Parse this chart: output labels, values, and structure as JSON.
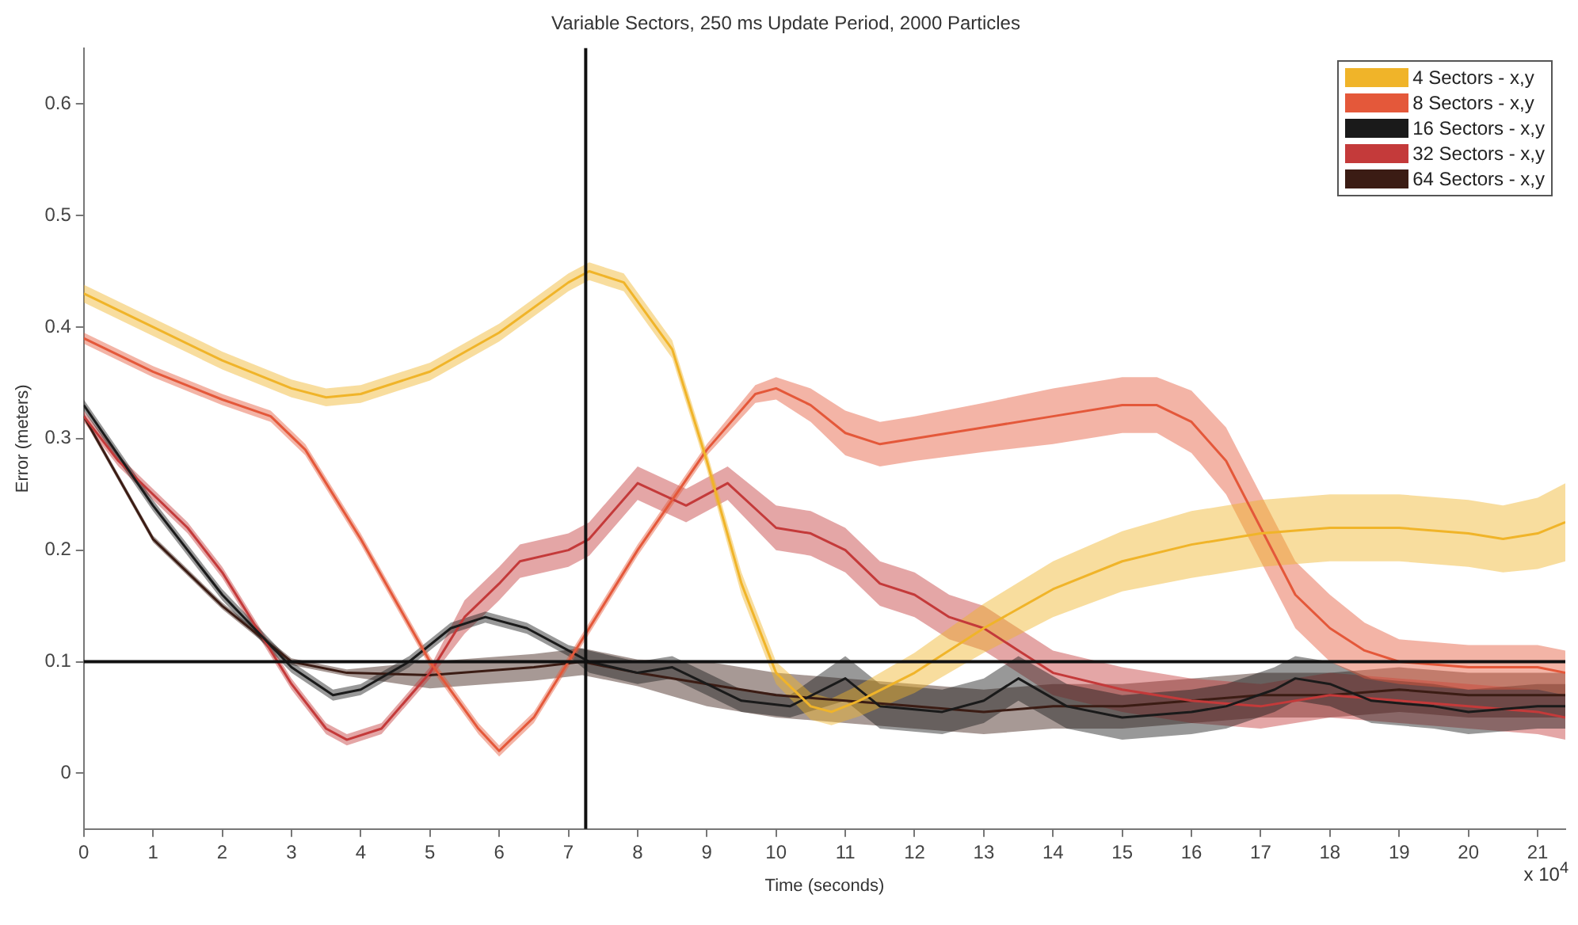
{
  "chart_data": {
    "type": "line",
    "title": "Variable Sectors, 250 ms Update Period, 2000 Particles",
    "xlabel": "Time (seconds)",
    "ylabel": "Error (meters)",
    "annotations": [
      "x 10$^{4}$"
    ],
    "xlim": [
      0,
      21.4
    ],
    "xticks": [
      0,
      1,
      2,
      3,
      4,
      5,
      6,
      7,
      8,
      9,
      10,
      11,
      12,
      13,
      14,
      15,
      16,
      17,
      18,
      19,
      20,
      21
    ],
    "ylim": [
      -0.05,
      0.65
    ],
    "yticks": [
      0,
      0.1,
      0.2,
      0.3,
      0.4,
      0.5,
      0.6
    ],
    "grid": false,
    "legend": "top right",
    "marker": "none",
    "line_style": "solid",
    "ref_lines": [
      {
        "axis": "y",
        "value": 0.1,
        "color": "#111111"
      },
      {
        "axis": "x",
        "value": 7.25,
        "color": "#111111"
      }
    ],
    "series": [
      {
        "name": "4 Sectors - x,y",
        "color": "#f0b429",
        "x": [
          0,
          1,
          2,
          3,
          3.5,
          4,
          5,
          6,
          7,
          7.3,
          7.8,
          8.5,
          9,
          9.5,
          10,
          10.5,
          10.8,
          11.2,
          12,
          13,
          14,
          15,
          16,
          17,
          18,
          19,
          20,
          20.5,
          21,
          21.4
        ],
        "values": [
          0.43,
          0.4,
          0.37,
          0.345,
          0.337,
          0.34,
          0.36,
          0.395,
          0.44,
          0.45,
          0.44,
          0.38,
          0.28,
          0.17,
          0.09,
          0.06,
          0.055,
          0.065,
          0.09,
          0.13,
          0.165,
          0.19,
          0.205,
          0.215,
          0.22,
          0.22,
          0.215,
          0.21,
          0.215,
          0.225
        ],
        "lower": [
          0.422,
          0.392,
          0.362,
          0.337,
          0.329,
          0.332,
          0.352,
          0.387,
          0.432,
          0.442,
          0.432,
          0.372,
          0.272,
          0.16,
          0.08,
          0.048,
          0.043,
          0.051,
          0.072,
          0.108,
          0.14,
          0.163,
          0.175,
          0.185,
          0.19,
          0.19,
          0.185,
          0.18,
          0.183,
          0.19
        ],
        "upper": [
          0.438,
          0.408,
          0.378,
          0.353,
          0.345,
          0.348,
          0.368,
          0.403,
          0.448,
          0.458,
          0.448,
          0.388,
          0.288,
          0.18,
          0.1,
          0.072,
          0.067,
          0.079,
          0.108,
          0.152,
          0.19,
          0.217,
          0.235,
          0.245,
          0.25,
          0.25,
          0.245,
          0.24,
          0.247,
          0.26
        ]
      },
      {
        "name": "8 Sectors - x,y",
        "color": "#e4583a",
        "x": [
          0,
          1,
          2,
          2.7,
          3.2,
          4,
          5,
          5.7,
          6,
          6.5,
          7,
          8,
          9,
          9.7,
          10,
          10.5,
          11,
          11.5,
          12,
          13,
          14,
          15,
          15.5,
          16,
          16.5,
          17,
          17.5,
          18,
          18.5,
          19,
          20,
          21,
          21.4
        ],
        "values": [
          0.39,
          0.36,
          0.335,
          0.32,
          0.29,
          0.21,
          0.1,
          0.04,
          0.02,
          0.05,
          0.1,
          0.2,
          0.29,
          0.34,
          0.345,
          0.33,
          0.305,
          0.295,
          0.3,
          0.31,
          0.32,
          0.33,
          0.33,
          0.315,
          0.28,
          0.22,
          0.16,
          0.13,
          0.11,
          0.1,
          0.095,
          0.095,
          0.09
        ],
        "lower": [
          0.385,
          0.355,
          0.33,
          0.315,
          0.285,
          0.205,
          0.095,
          0.035,
          0.015,
          0.045,
          0.095,
          0.195,
          0.285,
          0.332,
          0.335,
          0.315,
          0.285,
          0.275,
          0.28,
          0.288,
          0.295,
          0.305,
          0.305,
          0.287,
          0.25,
          0.19,
          0.13,
          0.1,
          0.085,
          0.08,
          0.075,
          0.075,
          0.07
        ],
        "upper": [
          0.395,
          0.365,
          0.34,
          0.325,
          0.295,
          0.215,
          0.105,
          0.045,
          0.025,
          0.055,
          0.105,
          0.205,
          0.295,
          0.348,
          0.355,
          0.345,
          0.325,
          0.315,
          0.32,
          0.332,
          0.345,
          0.355,
          0.355,
          0.343,
          0.31,
          0.25,
          0.19,
          0.16,
          0.135,
          0.12,
          0.115,
          0.115,
          0.11
        ]
      },
      {
        "name": "16 Sectors - x,y",
        "color": "#1a1a1a",
        "x": [
          0,
          1,
          2,
          3,
          3.6,
          4,
          4.7,
          5.3,
          5.8,
          6.4,
          7,
          7.3,
          8,
          8.5,
          9,
          9.5,
          10.2,
          11,
          11.5,
          12.4,
          13,
          13.5,
          14.2,
          15,
          16,
          16.5,
          17.2,
          17.5,
          18,
          18.6,
          19.5,
          20,
          21,
          21.4
        ],
        "values": [
          0.33,
          0.24,
          0.16,
          0.095,
          0.07,
          0.075,
          0.1,
          0.13,
          0.14,
          0.13,
          0.11,
          0.1,
          0.09,
          0.095,
          0.08,
          0.065,
          0.06,
          0.085,
          0.06,
          0.055,
          0.065,
          0.085,
          0.06,
          0.05,
          0.055,
          0.06,
          0.075,
          0.085,
          0.08,
          0.065,
          0.06,
          0.055,
          0.06,
          0.06
        ],
        "lower": [
          0.325,
          0.235,
          0.155,
          0.09,
          0.065,
          0.07,
          0.095,
          0.125,
          0.135,
          0.125,
          0.105,
          0.09,
          0.08,
          0.085,
          0.07,
          0.055,
          0.05,
          0.065,
          0.04,
          0.035,
          0.045,
          0.065,
          0.04,
          0.03,
          0.035,
          0.04,
          0.055,
          0.065,
          0.06,
          0.045,
          0.04,
          0.035,
          0.04,
          0.04
        ],
        "upper": [
          0.335,
          0.245,
          0.165,
          0.1,
          0.075,
          0.08,
          0.105,
          0.135,
          0.145,
          0.135,
          0.115,
          0.11,
          0.1,
          0.105,
          0.09,
          0.075,
          0.07,
          0.105,
          0.08,
          0.075,
          0.085,
          0.105,
          0.08,
          0.07,
          0.075,
          0.08,
          0.095,
          0.105,
          0.1,
          0.085,
          0.08,
          0.075,
          0.08,
          0.08
        ]
      },
      {
        "name": "32 Sectors - x,y",
        "color": "#c43a3a",
        "x": [
          0,
          0.5,
          1,
          1.5,
          2,
          2.5,
          3,
          3.5,
          3.8,
          4.3,
          5,
          5.5,
          6,
          6.3,
          7,
          7.3,
          8,
          8.7,
          9.3,
          10,
          10.5,
          11,
          11.5,
          12,
          12.5,
          13,
          13.5,
          14,
          15,
          16,
          17,
          18,
          19,
          20,
          21,
          21.4
        ],
        "values": [
          0.32,
          0.28,
          0.25,
          0.22,
          0.18,
          0.13,
          0.08,
          0.04,
          0.03,
          0.04,
          0.09,
          0.14,
          0.17,
          0.19,
          0.2,
          0.21,
          0.26,
          0.24,
          0.26,
          0.22,
          0.215,
          0.2,
          0.17,
          0.16,
          0.14,
          0.13,
          0.11,
          0.09,
          0.075,
          0.065,
          0.06,
          0.07,
          0.065,
          0.06,
          0.055,
          0.05
        ],
        "lower": [
          0.315,
          0.275,
          0.245,
          0.215,
          0.175,
          0.125,
          0.075,
          0.035,
          0.025,
          0.035,
          0.085,
          0.125,
          0.155,
          0.175,
          0.185,
          0.195,
          0.245,
          0.225,
          0.245,
          0.2,
          0.195,
          0.18,
          0.15,
          0.14,
          0.12,
          0.11,
          0.09,
          0.07,
          0.055,
          0.045,
          0.04,
          0.05,
          0.045,
          0.04,
          0.035,
          0.03
        ],
        "upper": [
          0.325,
          0.285,
          0.255,
          0.225,
          0.185,
          0.135,
          0.085,
          0.045,
          0.035,
          0.045,
          0.095,
          0.155,
          0.185,
          0.205,
          0.215,
          0.225,
          0.275,
          0.255,
          0.275,
          0.24,
          0.235,
          0.22,
          0.19,
          0.18,
          0.16,
          0.15,
          0.13,
          0.11,
          0.095,
          0.085,
          0.08,
          0.09,
          0.085,
          0.08,
          0.075,
          0.07
        ]
      },
      {
        "name": "64 Sectors - x,y",
        "color": "#3b1c14",
        "x": [
          0,
          1,
          2,
          3,
          3.8,
          5,
          6.5,
          7.2,
          8,
          9,
          10,
          11,
          12,
          13,
          14,
          15,
          16,
          17,
          18,
          19,
          20,
          21,
          21.4
        ],
        "values": [
          0.32,
          0.21,
          0.15,
          0.1,
          0.09,
          0.088,
          0.095,
          0.1,
          0.09,
          0.08,
          0.07,
          0.065,
          0.06,
          0.055,
          0.06,
          0.06,
          0.065,
          0.07,
          0.07,
          0.075,
          0.07,
          0.07,
          0.07
        ],
        "lower": [
          0.317,
          0.207,
          0.147,
          0.097,
          0.087,
          0.076,
          0.083,
          0.088,
          0.078,
          0.06,
          0.05,
          0.045,
          0.04,
          0.035,
          0.04,
          0.04,
          0.045,
          0.05,
          0.05,
          0.055,
          0.05,
          0.05,
          0.05
        ],
        "upper": [
          0.323,
          0.213,
          0.153,
          0.103,
          0.093,
          0.1,
          0.107,
          0.112,
          0.102,
          0.1,
          0.09,
          0.085,
          0.08,
          0.075,
          0.08,
          0.08,
          0.085,
          0.09,
          0.09,
          0.095,
          0.09,
          0.09,
          0.09
        ]
      }
    ]
  }
}
